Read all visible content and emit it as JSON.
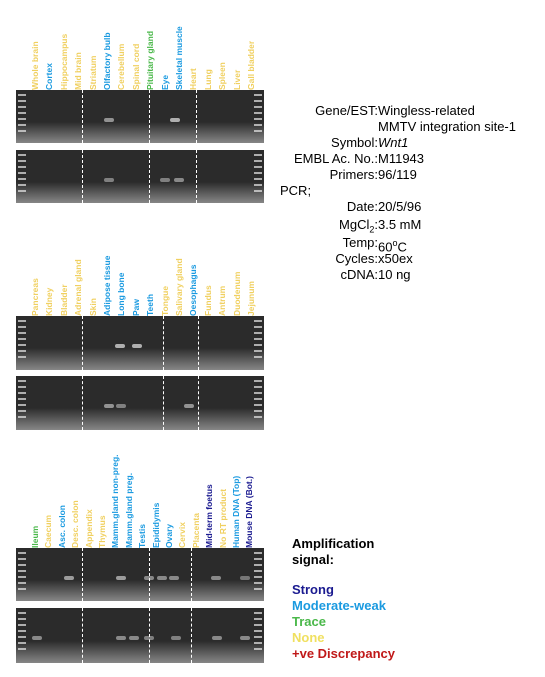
{
  "panels": [
    {
      "lanes": [
        {
          "label": "Whole brain",
          "color": "#f0d060"
        },
        {
          "label": "Cortex",
          "color": "#1a9ae0"
        },
        {
          "label": "Hippocampus",
          "color": "#f0d060"
        },
        {
          "label": "Mid brain",
          "color": "#f0d060"
        },
        {
          "label": "Striatum",
          "color": "#f0d060"
        },
        {
          "label": "Olfactory bulb",
          "color": "#1a9ae0"
        },
        {
          "label": "Cerebellum",
          "color": "#f0d060"
        },
        {
          "label": "Spinal cord",
          "color": "#f0d060"
        },
        {
          "label": "Pituitary gland",
          "color": "#4ab84a"
        },
        {
          "label": "Eye",
          "color": "#1a9ae0"
        },
        {
          "label": "Skeletal muscle",
          "color": "#1a9ae0"
        },
        {
          "label": "Heart",
          "color": "#f0d060"
        },
        {
          "label": "Lung",
          "color": "#f0d060"
        },
        {
          "label": "Spleen",
          "color": "#f0d060"
        },
        {
          "label": "Liver",
          "color": "#f0d060"
        },
        {
          "label": "Gall bladder",
          "color": "#f0d060"
        }
      ]
    },
    {
      "lanes": [
        {
          "label": "Pancreas",
          "color": "#f0d060"
        },
        {
          "label": "Kidney",
          "color": "#f0d060"
        },
        {
          "label": "Bladder",
          "color": "#f0d060"
        },
        {
          "label": "Adrenal gland",
          "color": "#f0d060"
        },
        {
          "label": "Skin",
          "color": "#f0d060"
        },
        {
          "label": "Adipose tissue",
          "color": "#1a9ae0"
        },
        {
          "label": "Long bone",
          "color": "#1a9ae0"
        },
        {
          "label": "Paw",
          "color": "#1a9ae0"
        },
        {
          "label": "Teeth",
          "color": "#1a9ae0"
        },
        {
          "label": "Tongue",
          "color": "#f0d060"
        },
        {
          "label": "Salivary gland",
          "color": "#f0d060"
        },
        {
          "label": "Oesophagus",
          "color": "#1a9ae0"
        },
        {
          "label": "Fundus",
          "color": "#f0d060"
        },
        {
          "label": "Antrum",
          "color": "#f0d060"
        },
        {
          "label": "Duodenum",
          "color": "#f0d060"
        },
        {
          "label": "Jejunum",
          "color": "#f0d060"
        }
      ]
    },
    {
      "lanes": [
        {
          "label": "Ileum",
          "color": "#4ab84a"
        },
        {
          "label": "Caecum",
          "color": "#f0d060"
        },
        {
          "label": "Asc. colon",
          "color": "#1a9ae0"
        },
        {
          "label": "Desc. colon",
          "color": "#f0d060"
        },
        {
          "label": "Appendix",
          "color": "#f0d060"
        },
        {
          "label": "Thymus",
          "color": "#f0d060"
        },
        {
          "label": "Mamm.gland non-preg.",
          "color": "#1a9ae0"
        },
        {
          "label": "Mamm.gland preg.",
          "color": "#1a9ae0"
        },
        {
          "label": "Testis",
          "color": "#1a9ae0"
        },
        {
          "label": "Epididymis",
          "color": "#1a9ae0"
        },
        {
          "label": "Ovary",
          "color": "#1a9ae0"
        },
        {
          "label": "Cervix",
          "color": "#f0d060"
        },
        {
          "label": "Placenta",
          "color": "#f0d060"
        },
        {
          "label": "Mid-term foetus",
          "color": "#1a1a90"
        },
        {
          "label": "No RT product",
          "color": "#f0d060"
        },
        {
          "label": "Human DNA (Top)",
          "color": "#1a9ae0"
        },
        {
          "label": "Mouse DNA (Bot.)",
          "color": "#1a1a90"
        }
      ]
    }
  ],
  "info": {
    "gene_key": "Gene/EST:",
    "gene_val_1": "Wingless-related",
    "gene_val_2": "MMTV integration site-1",
    "symbol_key": "Symbol:",
    "symbol_val": "Wnt1",
    "embl_key": "EMBL Ac. No.:",
    "embl_val": "M11943",
    "primers_key": "Primers:",
    "primers_val": "96/119",
    "pcr": "PCR;",
    "date_key": "Date:",
    "date_val": "20/5/96",
    "mgcl_key": "MgCl",
    "mgcl_sub": "2",
    "mgcl_colon": ":",
    "mgcl_val": "3.5 mM",
    "temp_key": "Temp:",
    "temp_val": "60",
    "temp_sup": "o",
    "temp_unit": "C",
    "cycles_key": "Cycles:",
    "cycles_val": "x50ex",
    "cdna_key": "cDNA:",
    "cdna_val": "10 ng"
  },
  "legend": {
    "title_1": "Amplification",
    "title_2": "signal:",
    "items": [
      {
        "label": "Strong",
        "color": "#1a1a90"
      },
      {
        "label": "Moderate-weak",
        "color": "#1a9ae0"
      },
      {
        "label": "Trace",
        "color": "#4ab84a"
      },
      {
        "label": "None",
        "color": "#f0e060"
      },
      {
        "label": "+ve Discrepancy",
        "color": "#c01818"
      }
    ]
  }
}
